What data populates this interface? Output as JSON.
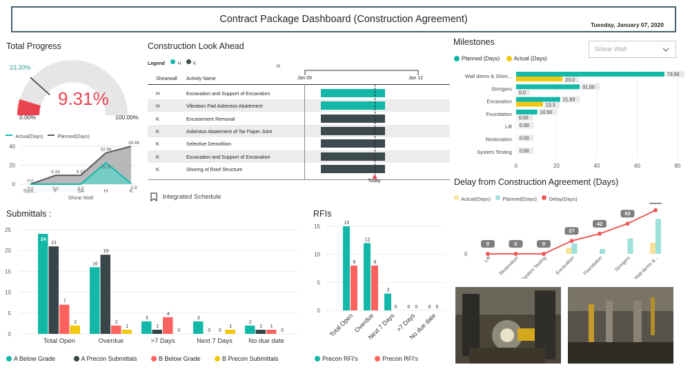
{
  "header": {
    "title": "Contract Package Dashboard (Construction Agreement)",
    "date": "Tuesday, January 07, 2020"
  },
  "total_progress": {
    "title": "Total Progress",
    "target_label": "23.30%",
    "target_value": 23.3,
    "value_label": "9.31%",
    "value": 9.31,
    "min_label": "0.00%",
    "max_label": "100.00%",
    "accent": "#e8434e"
  },
  "shear_wall_chart": {
    "legend": [
      "Actual(Days)",
      "Planned(Days)"
    ],
    "xlabel": "Shear Wall",
    "y_ticks": [
      "40",
      "20",
      "0"
    ],
    "chart_data": {
      "type": "area",
      "categories": [
        "Syst...",
        "F",
        "SA",
        "H",
        "K"
      ],
      "series": [
        {
          "name": "Actual(Days)",
          "values": [
            0.0,
            0.0,
            0.0,
            22.5,
            0.8
          ],
          "labels": [
            "0.0",
            "0.0",
            "0.0",
            "22.5",
            "0.8"
          ],
          "color": "#13b8a8"
        },
        {
          "name": "Planned(Days)",
          "values": [
            0.0,
            9.33,
            9.33,
            32.96,
            39.96
          ],
          "labels": [
            "0.0",
            "9.33",
            "9.33",
            "32.96",
            "39.96"
          ],
          "color": "#5a5a5a"
        }
      ],
      "ylim": [
        0,
        40
      ]
    }
  },
  "look_ahead": {
    "title": "Construction Look Ahead",
    "legend_label": "Legend",
    "legend": [
      {
        "name": "H",
        "color": "#13b8a8"
      },
      {
        "name": "K",
        "color": "#3c4a4d"
      }
    ],
    "collapse_symbol": "«",
    "col_shearwall": "Shearwall",
    "col_activity": "Activity Name",
    "date_start": "Jan 05",
    "date_end": "Jan 12",
    "today_label": "Today",
    "rows": [
      {
        "sw": "H",
        "activity": "Excavation and Support of Excavation"
      },
      {
        "sw": "H",
        "activity": "Vibration Pad Asbestos Abatement"
      },
      {
        "sw": "K",
        "activity": "Encasement Removal"
      },
      {
        "sw": "K",
        "activity": "Asbestos Abatement of Tar Paper Joint"
      },
      {
        "sw": "K",
        "activity": "Selective Demolition"
      },
      {
        "sw": "K",
        "activity": "Excavation and Support of Excavation"
      },
      {
        "sw": "K",
        "activity": "Shoring of Roof Structure"
      }
    ],
    "integrated_schedule": "Integrated Schedule"
  },
  "milestones": {
    "title": "Milestones",
    "slicer_value": "Shear Wall",
    "legend": [
      {
        "name": "Planned (Days)",
        "color": "#13b8a8"
      },
      {
        "name": "Actual (Days)",
        "color": "#f2c80f"
      }
    ],
    "x_ticks": [
      "0",
      "20",
      "40",
      "60",
      "80"
    ],
    "chart_data": {
      "type": "bar",
      "orientation": "horizontal",
      "categories": [
        "Wall demo & Shori...",
        "Stringers",
        "Excavation",
        "Foundation",
        "Lift",
        "Restoration",
        "System Testing"
      ],
      "series": [
        {
          "name": "Planned (Days)",
          "values": [
            73.5,
            31.5,
            21.83,
            10.5,
            0.0,
            0.0,
            0.0
          ]
        },
        {
          "name": "Actual (Days)",
          "values": [
            23.0,
            0.0,
            13.3,
            0.0,
            null,
            null,
            null
          ]
        }
      ],
      "planned_labels": [
        "73.50",
        "31.50",
        "21.83",
        "10.50",
        "0.00",
        "0.00",
        "0.00"
      ],
      "actual_labels": [
        "23.0",
        "0.0",
        "13.3",
        "0.00",
        "",
        "",
        ""
      ],
      "xlim": [
        0,
        80
      ]
    }
  },
  "delay": {
    "title": "Delay from Construction Agreement (Days)",
    "legend": [
      {
        "name": "Actual(Days)",
        "color": "#f7e29b"
      },
      {
        "name": "Planned(Days)",
        "color": "#9ee0db"
      },
      {
        "name": "Delay(Days)",
        "color": "#ec5a5a"
      }
    ],
    "y_tick": "0",
    "chart_data": {
      "type": "bar",
      "categories": [
        "Lift",
        "Restoration",
        "System Testing",
        "Excavation",
        "Foundation",
        "Stringers",
        "Wall demo &..."
      ],
      "series": [
        {
          "name": "Actual(Days)",
          "values": [
            0,
            0,
            0,
            13,
            0,
            0,
            23
          ]
        },
        {
          "name": "Planned(Days)",
          "values": [
            0,
            0,
            0,
            22,
            10,
            32,
            73
          ]
        },
        {
          "name": "Delay(Days)",
          "values": [
            0,
            0,
            0,
            27,
            42,
            63,
            91
          ],
          "labels": [
            "0",
            "0",
            "0",
            "27",
            "42",
            "63",
            "91"
          ]
        }
      ]
    }
  },
  "submittals": {
    "title": "Submittals :",
    "y_ticks": [
      "25",
      "20",
      "15",
      "10",
      "5",
      "0"
    ],
    "legend": [
      {
        "name": "A Below Grade",
        "color": "#13b8a8"
      },
      {
        "name": "A Precon Submittals",
        "color": "#374649"
      },
      {
        "name": "B Below Grade",
        "color": "#fd625e"
      },
      {
        "name": "B Precon Submittals",
        "color": "#f2c80f"
      }
    ],
    "chart_data": {
      "type": "bar",
      "categories": [
        "Total Open",
        "Overdue",
        ">7 Days",
        "Next 7 Days",
        "No due date"
      ],
      "series": [
        {
          "name": "A Below Grade",
          "values": [
            24,
            16,
            3,
            3,
            2
          ]
        },
        {
          "name": "A Precon Submittals",
          "values": [
            21,
            19,
            1,
            0,
            1
          ]
        },
        {
          "name": "B Below Grade",
          "values": [
            7,
            2,
            4,
            0,
            1
          ]
        },
        {
          "name": "B Precon Submittals",
          "values": [
            2,
            1,
            0,
            1,
            0
          ]
        }
      ],
      "ylim": [
        0,
        25
      ]
    }
  },
  "rfis": {
    "title": "RFIs",
    "y_ticks": [
      "15",
      "10",
      "5",
      "0"
    ],
    "legend": [
      {
        "name": "Precon RFI's",
        "color": "#13b8a8"
      },
      {
        "name": "Precon RFI's",
        "color": "#fd625e"
      }
    ],
    "chart_data": {
      "type": "bar",
      "categories": [
        "Total Open",
        "Overdue",
        "Next 7 Days",
        ">7 Days",
        "No due date"
      ],
      "series": [
        {
          "name": "Precon RFI's",
          "values": [
            15,
            12,
            3,
            0,
            0
          ]
        },
        {
          "name": "Precon RFI's",
          "values": [
            8,
            8,
            0,
            0,
            0
          ]
        }
      ],
      "ylim": [
        0,
        15
      ]
    }
  }
}
